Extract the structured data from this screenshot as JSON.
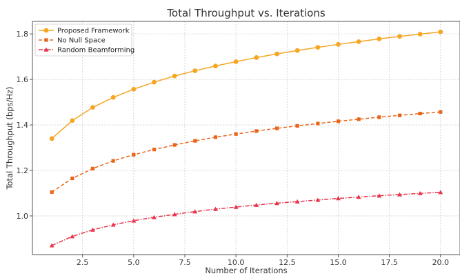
{
  "chart_data": {
    "type": "line",
    "title": "Total Throughput vs. Iterations",
    "xlabel": "Number of Iterations",
    "ylabel": "Total Throughput (bps/Hz)",
    "xlim": [
      0.05,
      20.95
    ],
    "ylim": [
      0.83,
      1.855
    ],
    "xticks": [
      2.5,
      5.0,
      7.5,
      10.0,
      12.5,
      15.0,
      17.5,
      20.0
    ],
    "xtick_labels": [
      "2.5",
      "5.0",
      "7.5",
      "10.0",
      "12.5",
      "15.0",
      "17.5",
      "20.0"
    ],
    "yticks": [
      1.0,
      1.2,
      1.4,
      1.6,
      1.8
    ],
    "ytick_labels": [
      "1.0",
      "1.2",
      "1.4",
      "1.6",
      "1.8"
    ],
    "grid": true,
    "legend_position": "top-left",
    "x": [
      1,
      2,
      3,
      4,
      5,
      6,
      7,
      8,
      9,
      10,
      11,
      12,
      13,
      14,
      15,
      16,
      17,
      18,
      19,
      20
    ],
    "series": [
      {
        "name": "Proposed Framework",
        "color": "#f5a623",
        "marker": "circle",
        "linestyle": "solid",
        "values": [
          1.34,
          1.419,
          1.477,
          1.521,
          1.557,
          1.588,
          1.615,
          1.638,
          1.659,
          1.678,
          1.696,
          1.712,
          1.727,
          1.741,
          1.754,
          1.766,
          1.778,
          1.789,
          1.799,
          1.809
        ]
      },
      {
        "name": "No Null Space",
        "color": "#e8661c",
        "marker": "square",
        "linestyle": "dashed",
        "values": [
          1.105,
          1.165,
          1.208,
          1.242,
          1.269,
          1.292,
          1.312,
          1.33,
          1.346,
          1.36,
          1.373,
          1.385,
          1.396,
          1.406,
          1.416,
          1.425,
          1.434,
          1.442,
          1.45,
          1.457
        ]
      },
      {
        "name": "Random Beamforming",
        "color": "#e8334a",
        "marker": "triangle",
        "linestyle": "dashdot",
        "values": [
          0.87,
          0.91,
          0.939,
          0.961,
          0.979,
          0.994,
          1.007,
          1.019,
          1.03,
          1.039,
          1.048,
          1.056,
          1.063,
          1.07,
          1.077,
          1.083,
          1.089,
          1.094,
          1.099,
          1.104
        ]
      }
    ]
  }
}
